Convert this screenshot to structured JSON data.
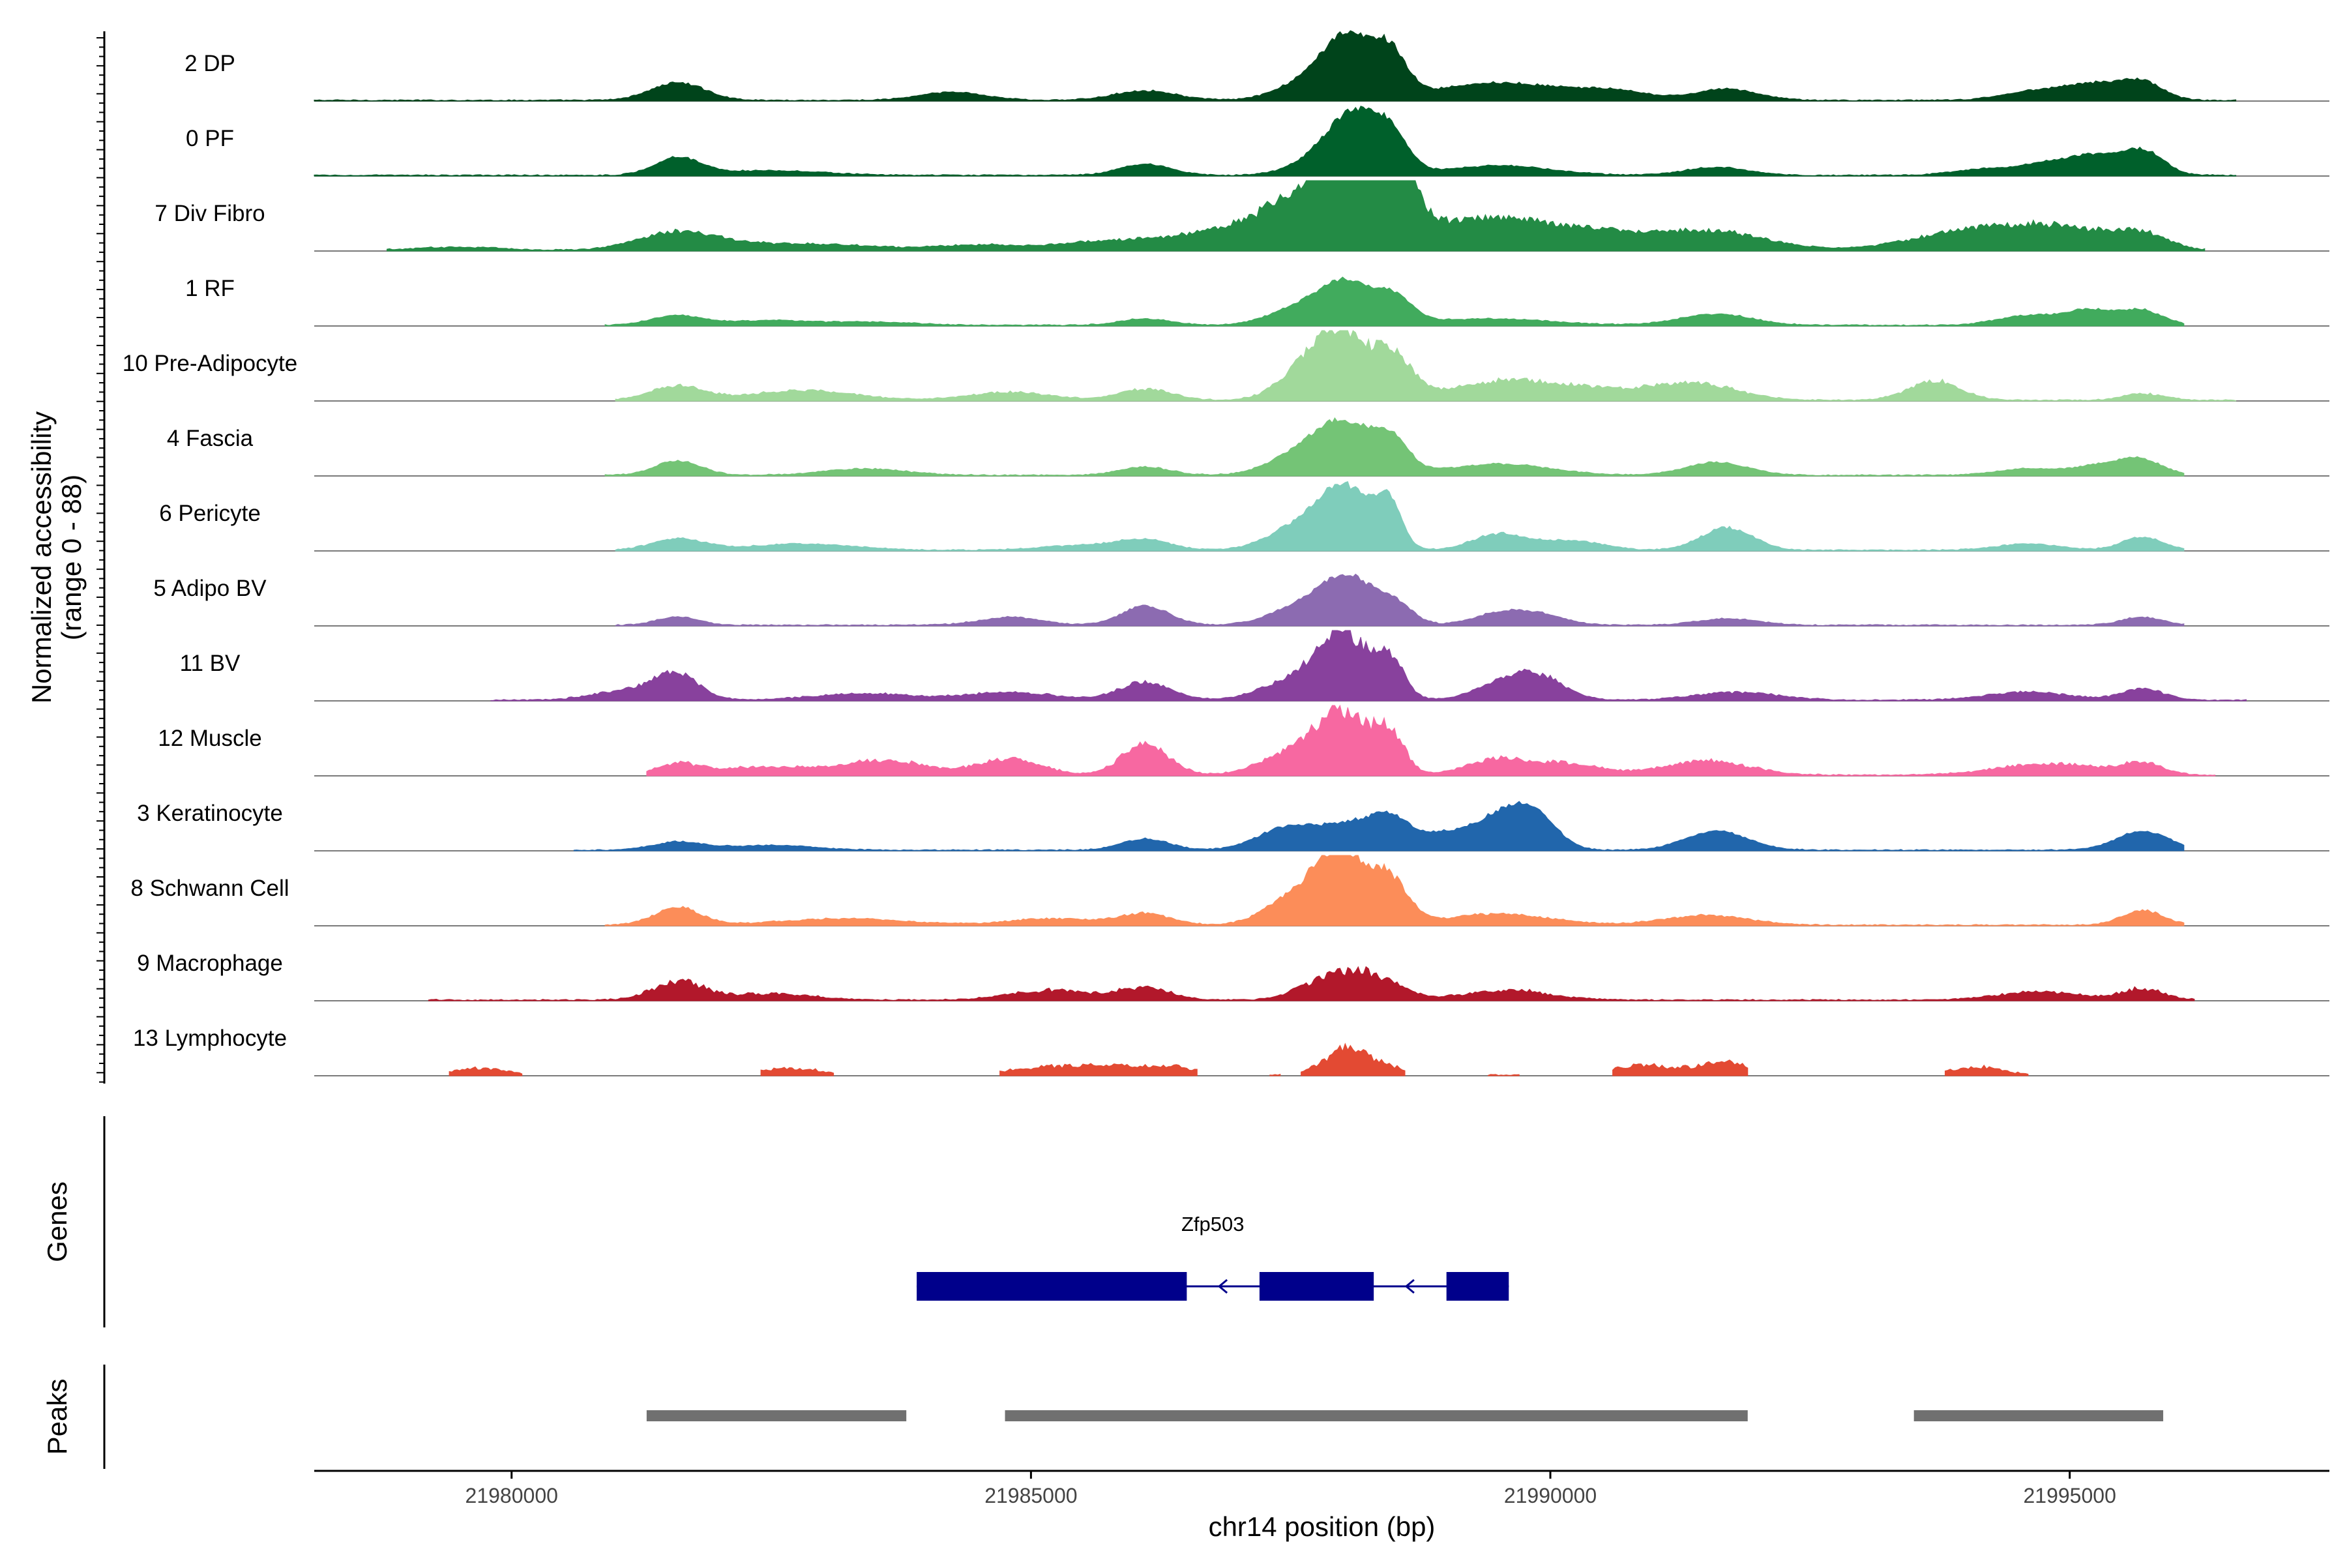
{
  "chart_data": {
    "type": "area",
    "chromosome": "chr14",
    "xlabel": "chr14 position (bp)",
    "ylabel_line1": "Normalized accessibility",
    "ylabel_line2": "(range 0 - 88)",
    "y_range": [
      0,
      88
    ],
    "xlim": [
      21978100,
      21997500
    ],
    "x_ticks": [
      21980000,
      21985000,
      21990000,
      21995000
    ],
    "x_tick_labels": [
      "21980000",
      "21985000",
      "21990000",
      "21995000"
    ],
    "tracks": [
      {
        "name": "2 DP",
        "color": "#00441b",
        "min_x": 21978100,
        "max_x": 21996600,
        "noise": 0.06,
        "peaks": [
          [
            21981600,
            260,
            22
          ],
          [
            21984250,
            320,
            10
          ],
          [
            21986100,
            300,
            12
          ],
          [
            21987700,
            300,
            25
          ],
          [
            21988050,
            220,
            70
          ],
          [
            21988450,
            170,
            55
          ],
          [
            21989500,
            600,
            22
          ],
          [
            21990600,
            350,
            10
          ],
          [
            21991700,
            300,
            14
          ],
          [
            21994700,
            320,
            12
          ],
          [
            21995250,
            260,
            18
          ],
          [
            21995700,
            200,
            22
          ]
        ]
      },
      {
        "name": "0 PF",
        "color": "#00602b",
        "min_x": 21978100,
        "max_x": 21996600,
        "noise": 0.05,
        "peaks": [
          [
            21981600,
            220,
            22
          ],
          [
            21982500,
            500,
            6
          ],
          [
            21986100,
            250,
            14
          ],
          [
            21987800,
            280,
            22
          ],
          [
            21988100,
            220,
            62
          ],
          [
            21988450,
            180,
            50
          ],
          [
            21989500,
            500,
            12
          ],
          [
            21991600,
            300,
            10
          ],
          [
            21994200,
            300,
            8
          ],
          [
            21994800,
            250,
            14
          ],
          [
            21995250,
            230,
            22
          ],
          [
            21995700,
            200,
            30
          ]
        ]
      },
      {
        "name": "7 Div Fibro",
        "color": "#238b45",
        "min_x": 21978800,
        "max_x": 21996300,
        "noise": 0.12,
        "peaks": [
          [
            21979500,
            400,
            4
          ],
          [
            21981600,
            380,
            22
          ],
          [
            21982800,
            700,
            8
          ],
          [
            21984500,
            400,
            6
          ],
          [
            21985800,
            500,
            12
          ],
          [
            21986700,
            400,
            12
          ],
          [
            21987500,
            500,
            38
          ],
          [
            21988000,
            400,
            78
          ],
          [
            21988500,
            200,
            82
          ],
          [
            21989200,
            400,
            26
          ],
          [
            21989800,
            500,
            24
          ],
          [
            21990600,
            500,
            16
          ],
          [
            21991600,
            500,
            22
          ],
          [
            21993800,
            500,
            14
          ],
          [
            21994500,
            500,
            22
          ],
          [
            21995100,
            400,
            16
          ],
          [
            21995700,
            250,
            18
          ]
        ]
      },
      {
        "name": "1 RF",
        "color": "#41ab5d",
        "min_x": 21980900,
        "max_x": 21996100,
        "noise": 0.05,
        "peaks": [
          [
            21981600,
            250,
            12
          ],
          [
            21982500,
            400,
            6
          ],
          [
            21983500,
            400,
            4
          ],
          [
            21986100,
            250,
            8
          ],
          [
            21987600,
            300,
            22
          ],
          [
            21988050,
            250,
            48
          ],
          [
            21988500,
            180,
            30
          ],
          [
            21989400,
            600,
            8
          ],
          [
            21991600,
            350,
            14
          ],
          [
            21994600,
            300,
            12
          ],
          [
            21995200,
            230,
            18
          ],
          [
            21995700,
            200,
            18
          ]
        ]
      },
      {
        "name": "10 Pre-Adipocyte",
        "color": "#a1d99b",
        "min_x": 21981000,
        "max_x": 21996600,
        "noise": 0.12,
        "peaks": [
          [
            21981600,
            250,
            18
          ],
          [
            21982800,
            500,
            12
          ],
          [
            21984800,
            400,
            10
          ],
          [
            21986100,
            250,
            14
          ],
          [
            21987600,
            250,
            30
          ],
          [
            21988000,
            250,
            82
          ],
          [
            21988500,
            180,
            50
          ],
          [
            21989500,
            500,
            22
          ],
          [
            21990400,
            500,
            12
          ],
          [
            21991400,
            400,
            20
          ],
          [
            21993700,
            250,
            24
          ],
          [
            21995700,
            200,
            8
          ]
        ]
      },
      {
        "name": "4 Fascia",
        "color": "#74c476",
        "min_x": 21980900,
        "max_x": 21996100,
        "noise": 0.05,
        "peaks": [
          [
            21981600,
            220,
            18
          ],
          [
            21983400,
            400,
            8
          ],
          [
            21986100,
            250,
            10
          ],
          [
            21987600,
            300,
            26
          ],
          [
            21988000,
            250,
            55
          ],
          [
            21988450,
            180,
            45
          ],
          [
            21989500,
            500,
            14
          ],
          [
            21991600,
            300,
            16
          ],
          [
            21994600,
            300,
            8
          ],
          [
            21995300,
            250,
            12
          ],
          [
            21995700,
            200,
            18
          ]
        ]
      },
      {
        "name": "6 Pericyte",
        "color": "#7fcdbb",
        "min_x": 21981000,
        "max_x": 21996100,
        "noise": 0.06,
        "peaks": [
          [
            21981600,
            250,
            14
          ],
          [
            21982800,
            500,
            8
          ],
          [
            21985500,
            400,
            6
          ],
          [
            21986100,
            250,
            12
          ],
          [
            21987600,
            300,
            30
          ],
          [
            21988050,
            250,
            72
          ],
          [
            21988450,
            120,
            50
          ],
          [
            21989500,
            250,
            20
          ],
          [
            21990200,
            300,
            12
          ],
          [
            21991700,
            250,
            28
          ],
          [
            21994600,
            300,
            8
          ],
          [
            21995700,
            200,
            16
          ]
        ]
      },
      {
        "name": "5 Adipo BV",
        "color": "#8c6bb1",
        "min_x": 21981000,
        "max_x": 21996100,
        "noise": 0.05,
        "peaks": [
          [
            21981600,
            200,
            10
          ],
          [
            21984800,
            300,
            10
          ],
          [
            21986100,
            230,
            24
          ],
          [
            21987600,
            300,
            22
          ],
          [
            21988050,
            250,
            55
          ],
          [
            21988500,
            180,
            24
          ],
          [
            21989500,
            250,
            14
          ],
          [
            21989900,
            250,
            12
          ],
          [
            21991700,
            300,
            8
          ],
          [
            21995700,
            200,
            10
          ]
        ]
      },
      {
        "name": "11 BV",
        "color": "#88419d",
        "min_x": 21979800,
        "max_x": 21996700,
        "noise": 0.12,
        "peaks": [
          [
            21981200,
            350,
            14
          ],
          [
            21981600,
            200,
            28
          ],
          [
            21983400,
            500,
            8
          ],
          [
            21984800,
            400,
            10
          ],
          [
            21986100,
            250,
            22
          ],
          [
            21987500,
            300,
            22
          ],
          [
            21988000,
            250,
            78
          ],
          [
            21988450,
            150,
            44
          ],
          [
            21989500,
            250,
            18
          ],
          [
            21989900,
            250,
            28
          ],
          [
            21991800,
            400,
            10
          ],
          [
            21994600,
            400,
            10
          ],
          [
            21995700,
            200,
            14
          ]
        ]
      },
      {
        "name": "12 Muscle",
        "color": "#f768a1",
        "min_x": 21981300,
        "max_x": 21996400,
        "noise": 0.14,
        "peaks": [
          [
            21981600,
            200,
            12
          ],
          [
            21982400,
            500,
            10
          ],
          [
            21983600,
            400,
            18
          ],
          [
            21984800,
            300,
            20
          ],
          [
            21986100,
            220,
            40
          ],
          [
            21987500,
            300,
            26
          ],
          [
            21988000,
            250,
            75
          ],
          [
            21988450,
            150,
            45
          ],
          [
            21989500,
            300,
            20
          ],
          [
            21990200,
            300,
            14
          ],
          [
            21991500,
            400,
            18
          ],
          [
            21994800,
            500,
            14
          ],
          [
            21995700,
            200,
            14
          ]
        ]
      },
      {
        "name": "3 Keratinocyte",
        "color": "#2166ac",
        "min_x": 21980600,
        "max_x": 21996100,
        "noise": 0.05,
        "peaks": [
          [
            21981600,
            250,
            10
          ],
          [
            21982500,
            400,
            6
          ],
          [
            21986100,
            230,
            14
          ],
          [
            21987500,
            300,
            30
          ],
          [
            21988100,
            250,
            28
          ],
          [
            21988450,
            180,
            30
          ],
          [
            21989000,
            350,
            22
          ],
          [
            21989600,
            250,
            42
          ],
          [
            21989900,
            200,
            28
          ],
          [
            21991600,
            300,
            24
          ],
          [
            21995700,
            250,
            24
          ]
        ]
      },
      {
        "name": "8 Schwann Cell",
        "color": "#fc8d59",
        "min_x": 21980900,
        "max_x": 21996100,
        "noise": 0.08,
        "peaks": [
          [
            21981600,
            220,
            22
          ],
          [
            21983200,
            600,
            8
          ],
          [
            21985200,
            400,
            8
          ],
          [
            21986100,
            250,
            14
          ],
          [
            21987600,
            300,
            40
          ],
          [
            21988000,
            220,
            80
          ],
          [
            21988450,
            180,
            55
          ],
          [
            21989500,
            500,
            14
          ],
          [
            21991500,
            400,
            12
          ],
          [
            21995700,
            200,
            18
          ]
        ]
      },
      {
        "name": "9 Macrophage",
        "color": "#b2182b",
        "min_x": 21979200,
        "max_x": 21996200,
        "noise": 0.18,
        "peaks": [
          [
            21981600,
            250,
            22
          ],
          [
            21982500,
            400,
            8
          ],
          [
            21985200,
            400,
            12
          ],
          [
            21986100,
            250,
            14
          ],
          [
            21987800,
            250,
            22
          ],
          [
            21988150,
            200,
            26
          ],
          [
            21988500,
            200,
            14
          ],
          [
            21989600,
            400,
            12
          ],
          [
            21994700,
            400,
            10
          ],
          [
            21995700,
            200,
            14
          ]
        ]
      },
      {
        "name": "13 Lymphocyte",
        "color": "#e34a33",
        "min_x": 21979400,
        "max_x": 21994600,
        "noise": 0.22,
        "segments": [
          [
            21979400,
            21980100
          ],
          [
            21982400,
            21983100
          ],
          [
            21984700,
            21986600
          ],
          [
            21987300,
            21987400
          ],
          [
            21987600,
            21988600
          ],
          [
            21989400,
            21989700
          ],
          [
            21990600,
            21991900
          ],
          [
            21993800,
            21994600
          ]
        ],
        "peaks": [
          [
            21979700,
            250,
            8
          ],
          [
            21982700,
            300,
            8
          ],
          [
            21985200,
            400,
            10
          ],
          [
            21985900,
            300,
            10
          ],
          [
            21986400,
            200,
            8
          ],
          [
            21988000,
            200,
            26
          ],
          [
            21988300,
            250,
            12
          ],
          [
            21990900,
            300,
            12
          ],
          [
            21991700,
            250,
            16
          ],
          [
            21994100,
            250,
            10
          ]
        ]
      }
    ],
    "genes": {
      "label": "Genes",
      "name": "Zfp503",
      "strand": "-",
      "color": "#00008b",
      "start": 21983900,
      "end": 21989600,
      "exons": [
        [
          21983900,
          21986500
        ],
        [
          21987200,
          21988300
        ],
        [
          21989000,
          21989600
        ]
      ]
    },
    "peaks": {
      "label": "Peaks",
      "color": "#707070",
      "regions": [
        [
          21981300,
          21983800
        ],
        [
          21984750,
          21991900
        ],
        [
          21993500,
          21995900
        ]
      ]
    }
  }
}
